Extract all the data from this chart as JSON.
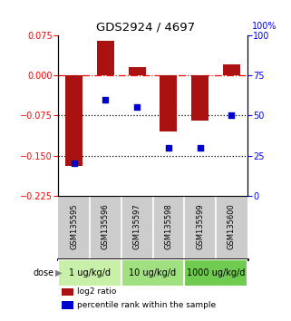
{
  "title": "GDS2924 / 4697",
  "samples": [
    "GSM135595",
    "GSM135596",
    "GSM135597",
    "GSM135598",
    "GSM135599",
    "GSM135600"
  ],
  "log2_ratio": [
    -0.17,
    0.065,
    0.015,
    -0.105,
    -0.085,
    0.02
  ],
  "percentile_rank": [
    20,
    60,
    55,
    30,
    30,
    50
  ],
  "bar_color": "#aa1111",
  "dot_color": "#0000cc",
  "ylim_left": [
    -0.225,
    0.075
  ],
  "ylim_right": [
    0,
    100
  ],
  "yticks_left": [
    0.075,
    0,
    -0.075,
    -0.15,
    -0.225
  ],
  "yticks_right": [
    100,
    75,
    50,
    25,
    0
  ],
  "hline_dashed": 0,
  "hline_dotted1": -0.075,
  "hline_dotted2": -0.15,
  "dose_groups": [
    {
      "label": "1 ug/kg/d",
      "color": "#c8f0a8",
      "start": 0,
      "end": 1
    },
    {
      "label": "10 ug/kg/d",
      "color": "#a0e080",
      "start": 2,
      "end": 3
    },
    {
      "label": "1000 ug/kg/d",
      "color": "#70cc50",
      "start": 4,
      "end": 5
    }
  ],
  "legend_red_label": "log2 ratio",
  "legend_blue_label": "percentile rank within the sample",
  "dose_label": "dose",
  "bg_color_samples": "#cccccc",
  "title_fontsize": 9.5,
  "tick_fontsize": 7,
  "sample_fontsize": 6,
  "dose_fontsize": 7,
  "legend_fontsize": 6.5
}
